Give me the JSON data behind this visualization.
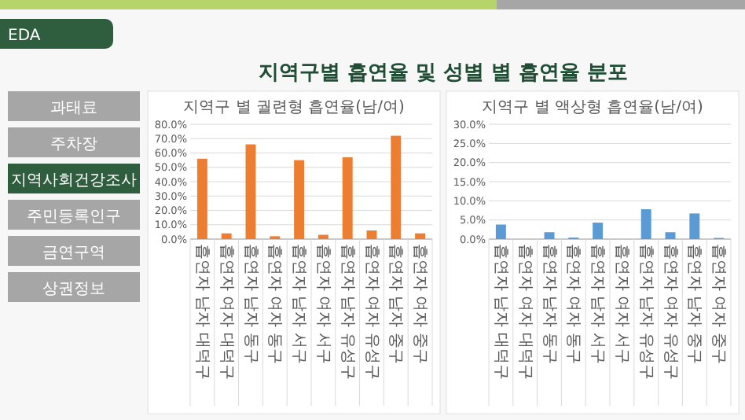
{
  "chart_data": [
    {
      "type": "other",
      "title": "지역구별 흡연율 및 성별 별 흡연율 분포",
      "annotations": [
        "EDA",
        "과태료",
        "주차장",
        "지역사회건강조사",
        "주민등록인구",
        "금연구역",
        "상권정보"
      ]
    },
    {
      "type": "bar",
      "title": "지역구 별 궐련형 흡연율(남/여)",
      "categories": [
        "흡연자 남자 대덕구",
        "흡연자 여자 대덕구",
        "흡연자 남자 동구",
        "흡연자 여자 동구",
        "흡연자 남자 서구",
        "흡연자 여자 서구",
        "흡연자 남자 유성구",
        "흡연자 여자 유성구",
        "흡연자 남자 중구",
        "흡연자 여자 중구"
      ],
      "values": [
        56,
        4,
        66,
        2,
        55,
        3,
        57,
        6,
        72,
        4
      ],
      "color": "#ed7d31",
      "ylim": [
        0,
        80
      ],
      "yticks": [
        {
          "value": 0,
          "label": "0.0%"
        },
        {
          "value": 10,
          "label": "10.0%"
        },
        {
          "value": 20,
          "label": "20.0%"
        },
        {
          "value": 30,
          "label": "30.0%"
        },
        {
          "value": 40,
          "label": "40.0%"
        },
        {
          "value": 50,
          "label": "50.0%"
        },
        {
          "value": 60,
          "label": "60.0%"
        },
        {
          "value": 70,
          "label": "70.0%"
        },
        {
          "value": 80,
          "label": "80.0%"
        }
      ],
      "grid": "y"
    },
    {
      "type": "bar",
      "title": "지역구 별 액상형 흡연율(남/여)",
      "categories": [
        "흡연자 남자 대덕구",
        "흡연자 여자 대덕구",
        "흡연자 남자 동구",
        "흡연자 여자 동구",
        "흡연자 남자 서구",
        "흡연자 여자 서구",
        "흡연자 남자 유성구",
        "흡연자 여자 유성구",
        "흡연자 남자 중구",
        "흡연자 여자 중구"
      ],
      "values": [
        3.8,
        0,
        1.8,
        0.4,
        4.3,
        0,
        7.8,
        1.8,
        6.7,
        0.3
      ],
      "color": "#5b9bd5",
      "ylim": [
        0,
        30
      ],
      "yticks": [
        {
          "value": 0,
          "label": "0.0%"
        },
        {
          "value": 5,
          "label": "5.0%"
        },
        {
          "value": 10,
          "label": "10.0%"
        },
        {
          "value": 15,
          "label": "15.0%"
        },
        {
          "value": 20,
          "label": "20.0%"
        },
        {
          "value": 25,
          "label": "25.0%"
        },
        {
          "value": 30,
          "label": "30.0%"
        }
      ],
      "grid": "y"
    }
  ]
}
